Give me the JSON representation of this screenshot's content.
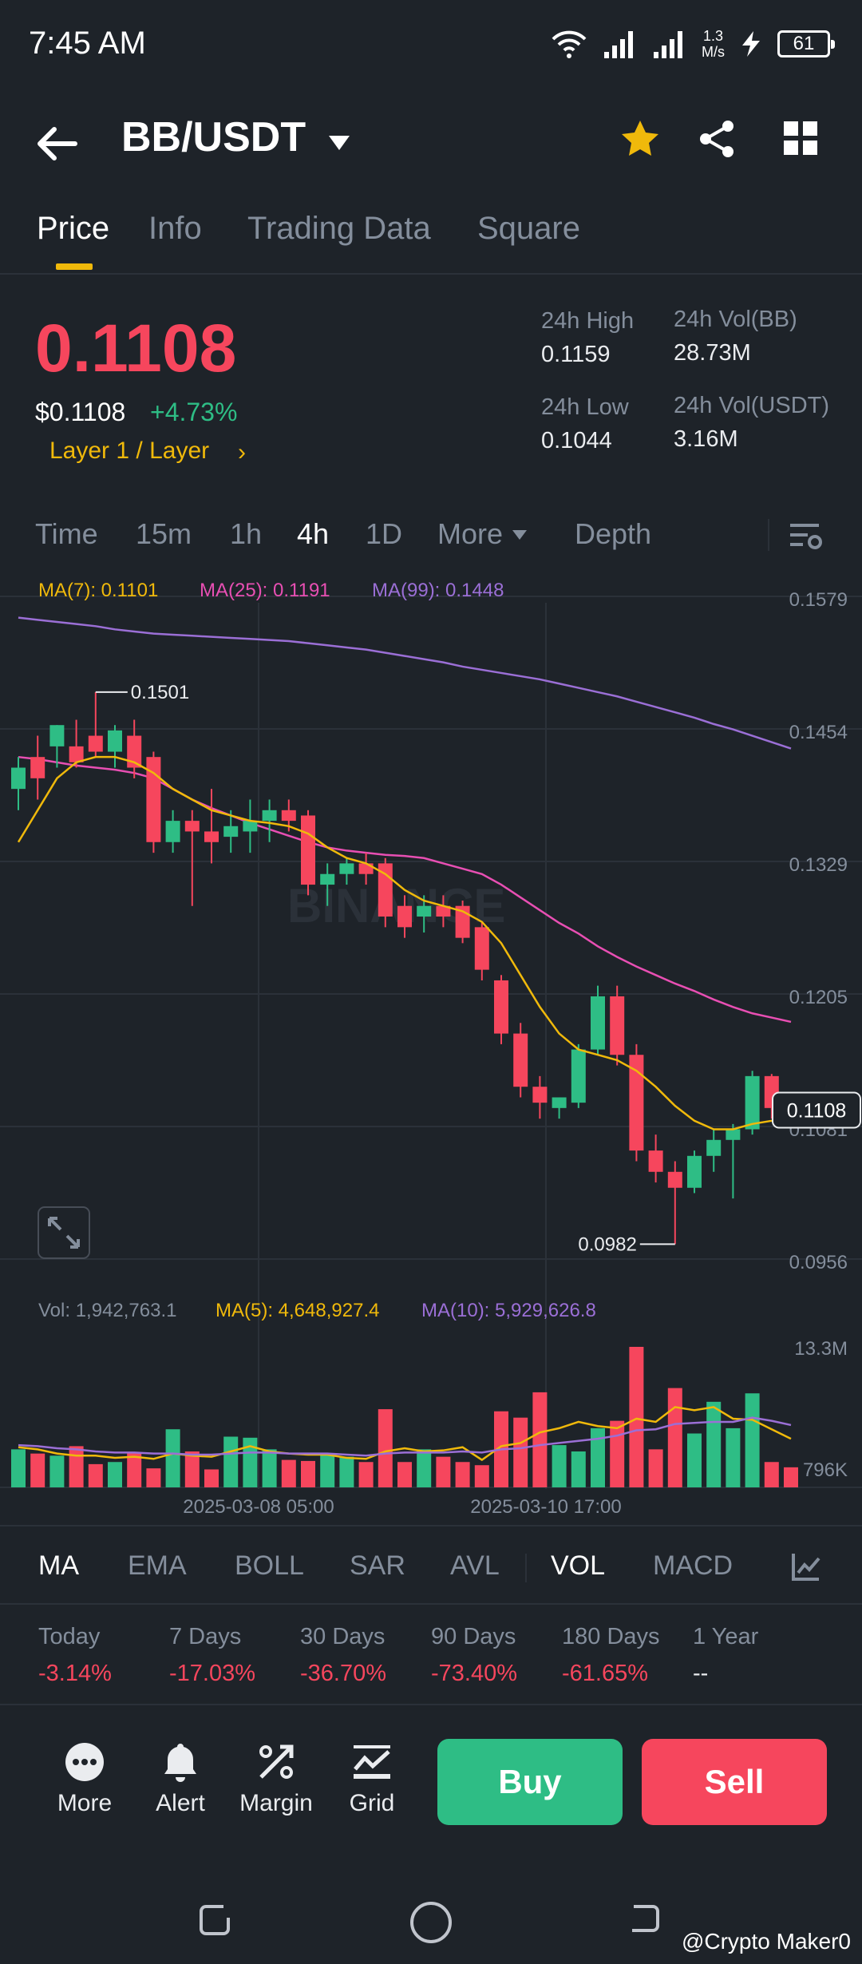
{
  "status": {
    "time": "7:45 AM",
    "speed_value": "1.3",
    "speed_unit": "M/s",
    "battery": "61"
  },
  "header": {
    "pair": "BB/USDT"
  },
  "tabs": [
    "Price",
    "Info",
    "Trading Data",
    "Square"
  ],
  "price": {
    "last": "0.1108",
    "usd": "$0.1108",
    "change": "+4.73%",
    "category": "Layer 1 / Layer",
    "high_label": "24h High",
    "high": "0.1159",
    "low_label": "24h Low",
    "low": "0.1044",
    "vol_base_label": "24h Vol(BB)",
    "vol_base": "28.73M",
    "vol_quote_label": "24h Vol(USDT)",
    "vol_quote": "3.16M"
  },
  "intervals": [
    "Time",
    "15m",
    "1h",
    "4h",
    "1D",
    "More",
    "Depth"
  ],
  "chart_legend": {
    "ma7": "MA(7): 0.1101",
    "ma25": "MA(25): 0.1191",
    "ma99": "MA(99): 0.1448"
  },
  "vol_legend": {
    "vol": "Vol: 1,942,763.1",
    "ma5": "MA(5): 4,648,927.4",
    "ma10": "MA(10): 5,929,626.8"
  },
  "colors": {
    "up": "#2ebd85",
    "down": "#f6465d",
    "ma7": "#f0b90b",
    "ma25": "#e84fb3",
    "ma99": "#9b6fd6",
    "accent": "#f0b90b"
  },
  "chart_data": {
    "type": "candlestick",
    "y_ticks": [
      "0.1579",
      "0.1454",
      "0.1329",
      "0.1205",
      "0.1081",
      "0.0956"
    ],
    "ylim": [
      0.0956,
      0.1579
    ],
    "high_marker": "0.1501",
    "low_marker": "0.0982",
    "current_price": "0.1108",
    "x_labels": [
      "2025-03-08 05:00",
      "2025-03-10 17:00"
    ],
    "vol_ticks": [
      "13.3M",
      "796K"
    ],
    "vol_ylim": [
      0,
      13.3
    ],
    "candles": [
      {
        "o": 0.141,
        "h": 0.144,
        "l": 0.139,
        "c": 0.143
      },
      {
        "o": 0.144,
        "h": 0.146,
        "l": 0.14,
        "c": 0.142
      },
      {
        "o": 0.145,
        "h": 0.147,
        "l": 0.143,
        "c": 0.147
      },
      {
        "o": 0.145,
        "h": 0.1475,
        "l": 0.143,
        "c": 0.1435
      },
      {
        "o": 0.146,
        "h": 0.1501,
        "l": 0.144,
        "c": 0.1445
      },
      {
        "o": 0.1445,
        "h": 0.147,
        "l": 0.143,
        "c": 0.1465
      },
      {
        "o": 0.146,
        "h": 0.1475,
        "l": 0.142,
        "c": 0.143
      },
      {
        "o": 0.144,
        "h": 0.1445,
        "l": 0.135,
        "c": 0.136
      },
      {
        "o": 0.136,
        "h": 0.139,
        "l": 0.135,
        "c": 0.138
      },
      {
        "o": 0.138,
        "h": 0.139,
        "l": 0.13,
        "c": 0.137
      },
      {
        "o": 0.137,
        "h": 0.141,
        "l": 0.134,
        "c": 0.136
      },
      {
        "o": 0.1365,
        "h": 0.139,
        "l": 0.135,
        "c": 0.1375
      },
      {
        "o": 0.137,
        "h": 0.14,
        "l": 0.135,
        "c": 0.138
      },
      {
        "o": 0.138,
        "h": 0.14,
        "l": 0.136,
        "c": 0.139
      },
      {
        "o": 0.139,
        "h": 0.14,
        "l": 0.137,
        "c": 0.138
      },
      {
        "o": 0.1385,
        "h": 0.139,
        "l": 0.131,
        "c": 0.132
      },
      {
        "o": 0.132,
        "h": 0.134,
        "l": 0.13,
        "c": 0.133
      },
      {
        "o": 0.133,
        "h": 0.1345,
        "l": 0.132,
        "c": 0.134
      },
      {
        "o": 0.134,
        "h": 0.135,
        "l": 0.132,
        "c": 0.133
      },
      {
        "o": 0.134,
        "h": 0.1345,
        "l": 0.128,
        "c": 0.129
      },
      {
        "o": 0.13,
        "h": 0.131,
        "l": 0.127,
        "c": 0.128
      },
      {
        "o": 0.129,
        "h": 0.131,
        "l": 0.1275,
        "c": 0.13
      },
      {
        "o": 0.13,
        "h": 0.131,
        "l": 0.128,
        "c": 0.129
      },
      {
        "o": 0.13,
        "h": 0.1305,
        "l": 0.1265,
        "c": 0.127
      },
      {
        "o": 0.128,
        "h": 0.1285,
        "l": 0.123,
        "c": 0.124
      },
      {
        "o": 0.123,
        "h": 0.1235,
        "l": 0.117,
        "c": 0.118
      },
      {
        "o": 0.118,
        "h": 0.119,
        "l": 0.112,
        "c": 0.113
      },
      {
        "o": 0.113,
        "h": 0.114,
        "l": 0.11,
        "c": 0.1115
      },
      {
        "o": 0.111,
        "h": 0.112,
        "l": 0.11,
        "c": 0.112
      },
      {
        "o": 0.1115,
        "h": 0.117,
        "l": 0.111,
        "c": 0.1165
      },
      {
        "o": 0.1165,
        "h": 0.1225,
        "l": 0.116,
        "c": 0.1215
      },
      {
        "o": 0.1215,
        "h": 0.1225,
        "l": 0.115,
        "c": 0.116
      },
      {
        "o": 0.116,
        "h": 0.117,
        "l": 0.106,
        "c": 0.107
      },
      {
        "o": 0.107,
        "h": 0.1085,
        "l": 0.104,
        "c": 0.105
      },
      {
        "o": 0.105,
        "h": 0.106,
        "l": 0.0982,
        "c": 0.1035
      },
      {
        "o": 0.1035,
        "h": 0.107,
        "l": 0.103,
        "c": 0.1065
      },
      {
        "o": 0.1065,
        "h": 0.109,
        "l": 0.105,
        "c": 0.108
      },
      {
        "o": 0.108,
        "h": 0.1095,
        "l": 0.1025,
        "c": 0.109
      },
      {
        "o": 0.109,
        "h": 0.1145,
        "l": 0.1085,
        "c": 0.114
      },
      {
        "o": 0.114,
        "h": 0.1142,
        "l": 0.11,
        "c": 0.111
      },
      {
        "o": 0.1112,
        "h": 0.112,
        "l": 0.1102,
        "c": 0.1108
      }
    ],
    "ma7_start_index": 0,
    "ma7": [
      0.136,
      0.139,
      0.142,
      0.1435,
      0.144,
      0.144,
      0.1435,
      0.1425,
      0.141,
      0.14,
      0.139,
      0.1385,
      0.138,
      0.1378,
      0.1375,
      0.1368,
      0.1355,
      0.1345,
      0.134,
      0.133,
      0.1315,
      0.1305,
      0.13,
      0.1295,
      0.1285,
      0.1265,
      0.1235,
      0.1205,
      0.118,
      0.1165,
      0.116,
      0.1155,
      0.1145,
      0.113,
      0.1112,
      0.1098,
      0.109,
      0.109,
      0.1095,
      0.1098,
      0.1101
    ],
    "ma25_start_index": 0,
    "ma25": [
      0.144,
      0.1438,
      0.1435,
      0.1432,
      0.143,
      0.1428,
      0.1425,
      0.142,
      0.141,
      0.14,
      0.1392,
      0.1385,
      0.1378,
      0.1372,
      0.1366,
      0.136,
      0.1355,
      0.1352,
      0.135,
      0.1348,
      0.1347,
      0.1345,
      0.134,
      0.1335,
      0.133,
      0.132,
      0.1308,
      0.1296,
      0.1284,
      0.1274,
      0.1262,
      0.1252,
      0.1243,
      0.1235,
      0.1227,
      0.122,
      0.1212,
      0.1205,
      0.1199,
      0.1195,
      0.1191
    ],
    "ma99": [
      0.1571,
      0.1569,
      0.1567,
      0.1565,
      0.1563,
      0.156,
      0.1558,
      0.1556,
      0.1555,
      0.1554,
      0.1553,
      0.1552,
      0.1551,
      0.155,
      0.1549,
      0.1547,
      0.1545,
      0.1543,
      0.1541,
      0.1538,
      0.1535,
      0.1532,
      0.1529,
      0.1525,
      0.1522,
      0.1519,
      0.1516,
      0.1513,
      0.1509,
      0.1505,
      0.1501,
      0.1497,
      0.1492,
      0.1487,
      0.1482,
      0.1477,
      0.1471,
      0.1466,
      0.146,
      0.1454,
      0.1448
    ],
    "volumes": [
      3.6,
      3.2,
      3.0,
      3.9,
      2.2,
      2.4,
      3.3,
      1.8,
      5.5,
      3.4,
      1.7,
      4.8,
      4.7,
      3.6,
      2.6,
      2.5,
      3.2,
      2.9,
      2.4,
      7.4,
      2.4,
      3.6,
      2.9,
      2.4,
      2.1,
      7.2,
      6.6,
      9.0,
      4.0,
      3.4,
      5.6,
      6.3,
      13.3,
      3.6,
      9.4,
      5.1,
      8.1,
      5.6,
      8.9,
      2.4,
      1.9
    ],
    "vol_ma5": [
      3.8,
      3.6,
      3.2,
      3.0,
      3.0,
      2.8,
      2.9,
      2.7,
      3.2,
      3.0,
      2.9,
      3.4,
      3.9,
      3.4,
      3.2,
      3.1,
      3.1,
      2.8,
      2.7,
      3.4,
      3.7,
      3.4,
      3.5,
      3.8,
      2.6,
      3.9,
      4.2,
      5.2,
      5.6,
      6.2,
      5.8,
      5.6,
      6.5,
      6.2,
      7.6,
      7.3,
      7.6,
      6.5,
      6.4,
      5.5,
      4.6
    ],
    "vol_ma10": [
      4.0,
      3.9,
      3.7,
      3.6,
      3.4,
      3.3,
      3.3,
      3.2,
      3.2,
      3.1,
      3.1,
      3.2,
      3.3,
      3.3,
      3.2,
      3.2,
      3.2,
      3.1,
      3.0,
      3.2,
      3.3,
      3.3,
      3.3,
      3.4,
      3.3,
      3.6,
      3.7,
      4.0,
      4.2,
      4.4,
      4.6,
      4.9,
      5.4,
      5.5,
      6.0,
      6.1,
      6.2,
      6.2,
      6.6,
      6.3,
      5.9
    ]
  },
  "indicators": [
    "MA",
    "EMA",
    "BOLL",
    "SAR",
    "AVL",
    "VOL",
    "MACD"
  ],
  "performance": {
    "labels": [
      "Today",
      "7 Days",
      "30 Days",
      "90 Days",
      "180 Days",
      "1 Year"
    ],
    "values": [
      "-3.14%",
      "-17.03%",
      "-36.70%",
      "-73.40%",
      "-61.65%",
      "--"
    ]
  },
  "actions": {
    "more": "More",
    "alert": "Alert",
    "margin": "Margin",
    "grid": "Grid",
    "buy": "Buy",
    "sell": "Sell"
  },
  "watermark": "@Crypto Maker0"
}
